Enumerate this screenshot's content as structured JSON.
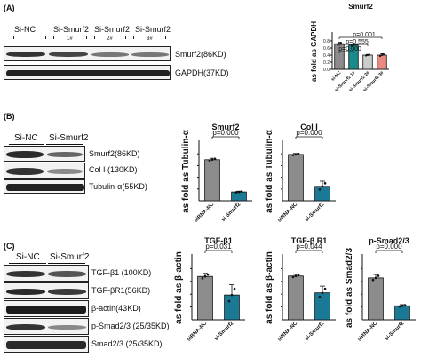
{
  "panels": {
    "A": {
      "label": "(A)",
      "lanes": [
        "Si-NC",
        "Si-Smurf2",
        "Si-Smurf2",
        "Si-Smurf2"
      ],
      "lane_suffixes": [
        "",
        "1#",
        "2#",
        "3#"
      ],
      "blots": [
        "Smurf2(86KD)",
        "GAPDH(37KD)"
      ]
    },
    "B": {
      "label": "(B)",
      "lanes": [
        "Si-NC",
        "Si-Smurf2"
      ],
      "blots": [
        "Smurf2(86KD)",
        "Col I (130KD)",
        "Tubulin-α(55KD)"
      ]
    },
    "C": {
      "label": "(C)",
      "lanes": [
        "Si-NC",
        "Si-Smurf2"
      ],
      "blots": [
        "TGF-β1 (100KD)",
        "TGF-βR1(56KD)",
        "β-actin(43KD)",
        "p-Smad2/3 (25/35KD)",
        "Smad2/3 (25/35KD)"
      ]
    }
  },
  "chart_data": [
    {
      "id": "A-smurf2",
      "type": "bar",
      "title": "Smurf2",
      "ylabel": "as fold as GAPDH",
      "categories": [
        "si-NC",
        "si-Smurf2 1#",
        "si-Smurf2 2#",
        "si-Smurf2 3#"
      ],
      "values": [
        0.72,
        0.68,
        0.4,
        0.4
      ],
      "errors": [
        0.04,
        0.04,
        0.02,
        0.04
      ],
      "colors": [
        "#8c8c8c",
        "#1a8a8c",
        "#cccccc",
        "#e88a7f"
      ],
      "ylim": [
        0,
        1.0
      ],
      "yticks": [
        "0.0",
        "0.2",
        "0.4",
        "0.6",
        "0.8"
      ],
      "annotations": [
        "p=0.001",
        "p=0.555",
        "p=0.000"
      ]
    },
    {
      "id": "B-smurf2",
      "type": "bar",
      "title": "Smurf2",
      "ylabel": "as fold as Tubulin-α",
      "categories": [
        "siRNA-NC",
        "si-Smurf2"
      ],
      "values": [
        0.88,
        0.66
      ],
      "errors": [
        0.01,
        0.005
      ],
      "colors": [
        "#8c8c8c",
        "#1a7a96"
      ],
      "ylim": [
        0.6,
        1.0
      ],
      "annotations": [
        "p=0.000"
      ]
    },
    {
      "id": "B-coli",
      "type": "bar",
      "title": "Col I",
      "ylabel": "as fold as Tubulin-α",
      "categories": [
        "siRNA-NC",
        "si-Smurf2"
      ],
      "values": [
        0.8,
        0.49
      ],
      "errors": [
        0.01,
        0.05
      ],
      "colors": [
        "#8c8c8c",
        "#1a7a96"
      ],
      "ylim": [
        0.35,
        0.92
      ],
      "annotations": [
        "p=0.000"
      ]
    },
    {
      "id": "C-tgfb1",
      "type": "bar",
      "title": "TGF-β1",
      "ylabel": "as fold as β-actin",
      "categories": [
        "siRNA-NC",
        "si-Smurf2"
      ],
      "values": [
        0.56,
        0.47
      ],
      "errors": [
        0.015,
        0.05
      ],
      "colors": [
        "#8c8c8c",
        "#1a7a96"
      ],
      "ylim": [
        0.35,
        0.66
      ],
      "annotations": [
        "p=0.031"
      ]
    },
    {
      "id": "C-tgfbr1",
      "type": "bar",
      "title": "TGF-β R1",
      "ylabel": "as fold as β-actin",
      "categories": [
        "siRNA-NC",
        "si-Smurf2"
      ],
      "values": [
        0.68,
        0.63
      ],
      "errors": [
        0.005,
        0.02
      ],
      "colors": [
        "#8c8c8c",
        "#1a7a96"
      ],
      "ylim": [
        0.55,
        0.74
      ],
      "annotations": [
        "p=0.044"
      ]
    },
    {
      "id": "C-psmad",
      "type": "bar",
      "title": "p-Smad2/3",
      "ylabel": "as fold as Smad2/3",
      "categories": [
        "siRNA-NC",
        "si-Smurf2"
      ],
      "values": [
        1.06,
        0.82
      ],
      "errors": [
        0.03,
        0.01
      ],
      "colors": [
        "#8c8c8c",
        "#1a7a96"
      ],
      "ylim": [
        0.7,
        1.25
      ],
      "annotations": [
        "p=0.000"
      ]
    }
  ]
}
